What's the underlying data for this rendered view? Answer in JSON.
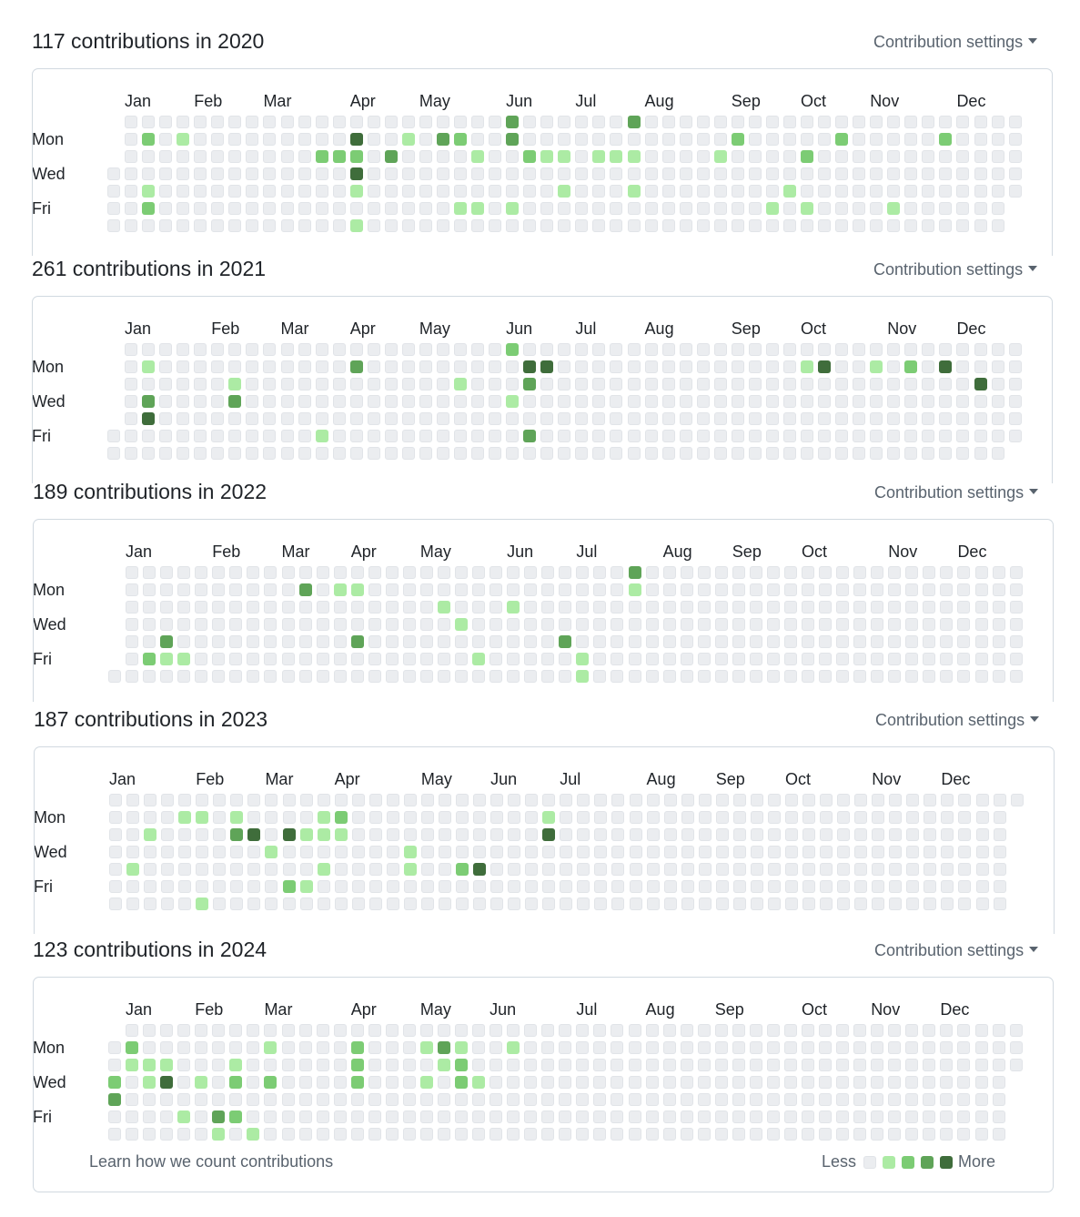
{
  "settings_label": "Contribution settings",
  "months": [
    "Jan",
    "Feb",
    "Mar",
    "Apr",
    "May",
    "Jun",
    "Jul",
    "Aug",
    "Sep",
    "Oct",
    "Nov",
    "Dec"
  ],
  "day_labels": [
    "Mon",
    "Wed",
    "Fri"
  ],
  "legend": {
    "less": "Less",
    "more": "More"
  },
  "footer_link": "Learn how we count contributions",
  "colors": {
    "level0": "#ebedf0",
    "level1": "#aceba4",
    "level2": "#7ccc74",
    "level3": "#5fa458",
    "level4": "#3f6d3b"
  },
  "years": [
    {
      "title": "117 contributions in 2020",
      "count": 117,
      "year": 2020,
      "start_weekday": 3,
      "days": 366,
      "grid": [
        "0000000000000000000000030000003000000000000000000000",
        "0020100000000040010320030000000000002000002000002000",
        "0000000000002220300001002110111000010000200000000000",
        "0000000000000040000000000000000000000000000000000000",
        "0010000000000010000000000010001000000001000000000000",
        "0020000000000000000011010000000000000010100001000000",
        "0000000000000010000000000000000000000000000000000000"
      ]
    },
    {
      "title": "261 contributions in 2021",
      "count": 261,
      "year": 2021,
      "start_weekday": 5,
      "days": 365,
      "grid": [
        "0000000000000000000000020000000000000000000000000000",
        "0010000000000030000000004400000000000000140010204000",
        "0000000100000000000010003000000000000000000000000040",
        "0030000300000000000000010000000000000000000000000000",
        "0040000000000000000000000000000000000000000000000000",
        "0000000000001000000000003000000000000000000000000000",
        "0000000000000000000000000000000000000000000000000000"
      ]
    },
    {
      "title": "189 contributions in 2022",
      "count": 189,
      "year": 2022,
      "start_weekday": 6,
      "days": 365,
      "grid": [
        "0000000000000000000000000000003000000000000000000000",
        "0000000000030110000000000000001000000000000000000000",
        "0000000000000000000100010000000000000000000000000000",
        "0000000000000000000010000000000000000000000000000000",
        "0003000000000030000000000030000000000000000000000000",
        "0021100000000000000001000001000000000000000000000000",
        "0000000000000000000000000001000000000000000000000000"
      ]
    },
    {
      "title": "187 contributions in 2023",
      "count": 187,
      "year": 2023,
      "start_weekday": 0,
      "days": 365,
      "grid": [
        "0000000000000000000000000000000000000000000000000000",
        "0000110100001200000000000100000000000000000000000000",
        "0010000340411100000000000400000000000000000000000000",
        "0000000001000000010000000000000000000000000000000000",
        "0100000000001000010024000000000000000000000000000000",
        "0000000000210000000000000000000000000000000000000000",
        "0000010000000000000000000000000000000000000000000000"
      ]
    },
    {
      "title": "123 contributions in 2024",
      "count": 123,
      "year": 2024,
      "start_weekday": 1,
      "days": 366,
      "grid": [
        "0000000000000000000000000000000000000000000000000000",
        "0200000001000020001310010000000000000000000000000000",
        "0111000100000020000120000000000000000000000000000000",
        "2014010202000020001021000000000000000000000000000000",
        "3000000000000000000000000000000000000000000000000000",
        "0000103200000000000000000000000000000000000000000000",
        "0000001010000000000000000000000000000000000000000000"
      ]
    }
  ]
}
